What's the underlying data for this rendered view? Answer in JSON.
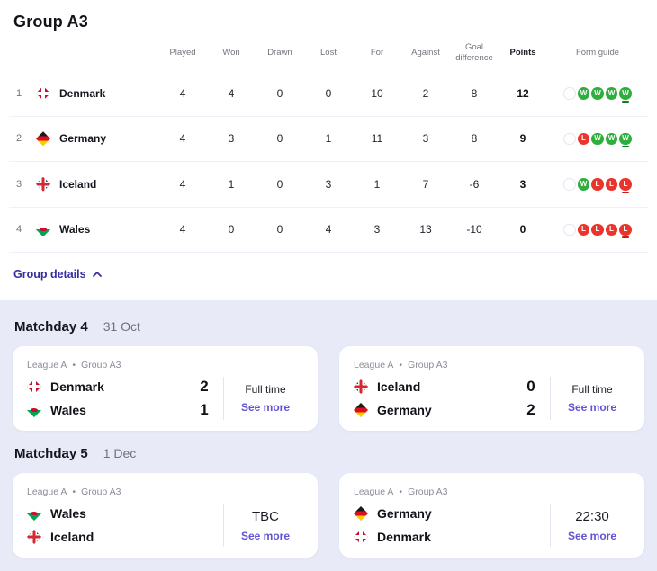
{
  "colors": {
    "accent_indigo": "#352da1",
    "link_purple": "#6153d3",
    "win_green": "#2eae3c",
    "loss_red": "#ea342c",
    "section_background": "#e8ebf7"
  },
  "group": {
    "title": "Group A3",
    "details_toggle": "Group details",
    "columns": [
      "Played",
      "Won",
      "Drawn",
      "Lost",
      "For",
      "Against",
      "Goal difference",
      "Points",
      "Form guide"
    ],
    "rows": [
      {
        "pos": "1",
        "team": "Denmark",
        "flag": "denmark",
        "played": "4",
        "won": "4",
        "drawn": "0",
        "lost": "0",
        "goals_for": "10",
        "goals_against": "2",
        "goal_difference": "8",
        "points": "12",
        "form": [
          "",
          "W",
          "W",
          "W",
          "W"
        ]
      },
      {
        "pos": "2",
        "team": "Germany",
        "flag": "germany",
        "played": "4",
        "won": "3",
        "drawn": "0",
        "lost": "1",
        "goals_for": "11",
        "goals_against": "3",
        "goal_difference": "8",
        "points": "9",
        "form": [
          "",
          "L",
          "W",
          "W",
          "W"
        ]
      },
      {
        "pos": "3",
        "team": "Iceland",
        "flag": "iceland",
        "played": "4",
        "won": "1",
        "drawn": "0",
        "lost": "3",
        "goals_for": "1",
        "goals_against": "7",
        "goal_difference": "-6",
        "points": "3",
        "form": [
          "",
          "W",
          "L",
          "L",
          "L"
        ]
      },
      {
        "pos": "4",
        "team": "Wales",
        "flag": "wales",
        "played": "4",
        "won": "0",
        "drawn": "0",
        "lost": "4",
        "goals_for": "3",
        "goals_against": "13",
        "goal_difference": "-10",
        "points": "0",
        "form": [
          "",
          "L",
          "L",
          "L",
          "L"
        ]
      }
    ]
  },
  "matchdays": [
    {
      "title": "Matchday 4",
      "date": "31 Oct",
      "matches": [
        {
          "competition": "League A",
          "separator": "•",
          "group": "Group A3",
          "status": "Full time",
          "status_type": "finished",
          "link": "See more",
          "teams": [
            {
              "name": "Denmark",
              "flag": "denmark",
              "score": "2"
            },
            {
              "name": "Wales",
              "flag": "wales",
              "score": "1"
            }
          ]
        },
        {
          "competition": "League A",
          "separator": "•",
          "group": "Group A3",
          "status": "Full time",
          "status_type": "finished",
          "link": "See more",
          "teams": [
            {
              "name": "Iceland",
              "flag": "iceland",
              "score": "0"
            },
            {
              "name": "Germany",
              "flag": "germany",
              "score": "2"
            }
          ]
        }
      ]
    },
    {
      "title": "Matchday 5",
      "date": "1 Dec",
      "matches": [
        {
          "competition": "League A",
          "separator": "•",
          "group": "Group A3",
          "status": "TBC",
          "status_type": "upcoming",
          "link": "See more",
          "teams": [
            {
              "name": "Wales",
              "flag": "wales",
              "score": ""
            },
            {
              "name": "Iceland",
              "flag": "iceland",
              "score": ""
            }
          ]
        },
        {
          "competition": "League A",
          "separator": "•",
          "group": "Group A3",
          "status": "22:30",
          "status_type": "upcoming",
          "link": "See more",
          "teams": [
            {
              "name": "Germany",
              "flag": "germany",
              "score": ""
            },
            {
              "name": "Denmark",
              "flag": "denmark",
              "score": ""
            }
          ]
        }
      ]
    }
  ]
}
